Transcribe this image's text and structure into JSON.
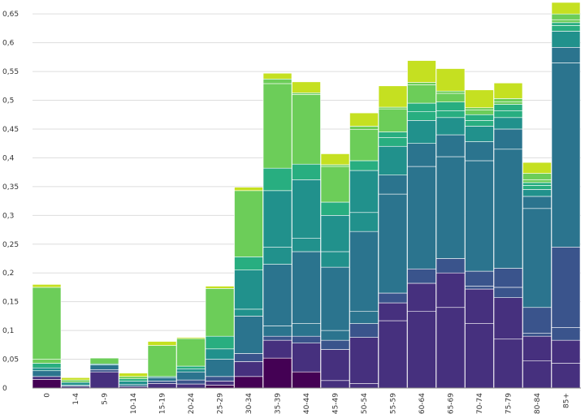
{
  "chart_data": {
    "type": "bar",
    "stacked": true,
    "title": "",
    "xlabel": "",
    "ylabel": "",
    "ylim": [
      0,
      0.67
    ],
    "yticks": [
      0,
      0.05,
      0.1,
      0.15,
      0.2,
      0.25,
      0.3,
      0.35,
      0.4,
      0.45,
      0.5,
      0.55,
      0.6,
      0.65
    ],
    "ytick_labels": [
      "0",
      "0,05",
      "0,1",
      "0,15",
      "0,2",
      "0,25",
      "0,3",
      "0,35",
      "0,4",
      "0,45",
      "0,5",
      "0,55",
      "0,6",
      "0,65"
    ],
    "grid": true,
    "legend": "none",
    "categories": [
      "0",
      "1-4",
      "5-9",
      "10-14",
      "15-19",
      "20-24",
      "25-29",
      "30-34",
      "35-39",
      "40-44",
      "45-49",
      "50-54",
      "55-59",
      "60-64",
      "65-69",
      "70-74",
      "75-79",
      "80-84",
      "85+"
    ],
    "colors": [
      "#440154",
      "#46307e",
      "#3a548c",
      "#2b748e",
      "#21918c",
      "#28ae80",
      "#6ccd59",
      "#c5e021"
    ],
    "segments": [
      [
        [
          0.015,
          0
        ],
        [
          0.02,
          1
        ],
        [
          0.03,
          3
        ],
        [
          0.035,
          4
        ],
        [
          0.043,
          5
        ],
        [
          0.05,
          6
        ],
        [
          0.175,
          6
        ],
        [
          0.18,
          7
        ]
      ],
      [
        [
          0.003,
          1
        ],
        [
          0.005,
          3
        ],
        [
          0.01,
          4
        ],
        [
          0.014,
          6
        ],
        [
          0.018,
          7
        ]
      ],
      [
        [
          0.028,
          1
        ],
        [
          0.032,
          2
        ],
        [
          0.04,
          3
        ],
        [
          0.042,
          4
        ],
        [
          0.052,
          6
        ]
      ],
      [
        [
          0.003,
          1
        ],
        [
          0.006,
          3
        ],
        [
          0.012,
          4
        ],
        [
          0.016,
          5
        ],
        [
          0.02,
          6
        ],
        [
          0.026,
          7
        ]
      ],
      [
        [
          0.008,
          1
        ],
        [
          0.012,
          2
        ],
        [
          0.018,
          3
        ],
        [
          0.02,
          4
        ],
        [
          0.074,
          6
        ],
        [
          0.081,
          7
        ]
      ],
      [
        [
          0.007,
          1
        ],
        [
          0.014,
          2
        ],
        [
          0.028,
          3
        ],
        [
          0.033,
          4
        ],
        [
          0.038,
          5
        ],
        [
          0.086,
          6
        ],
        [
          0.088,
          7
        ]
      ],
      [
        [
          0.005,
          0
        ],
        [
          0.012,
          1
        ],
        [
          0.02,
          2
        ],
        [
          0.05,
          3
        ],
        [
          0.068,
          4
        ],
        [
          0.09,
          5
        ],
        [
          0.173,
          6
        ],
        [
          0.177,
          7
        ]
      ],
      [
        [
          0.02,
          0
        ],
        [
          0.046,
          1
        ],
        [
          0.06,
          2
        ],
        [
          0.125,
          3
        ],
        [
          0.137,
          4
        ],
        [
          0.205,
          4
        ],
        [
          0.228,
          5
        ],
        [
          0.343,
          6
        ],
        [
          0.349,
          7
        ]
      ],
      [
        [
          0.052,
          0
        ],
        [
          0.083,
          1
        ],
        [
          0.09,
          2
        ],
        [
          0.108,
          3
        ],
        [
          0.215,
          3
        ],
        [
          0.245,
          4
        ],
        [
          0.343,
          4
        ],
        [
          0.382,
          5
        ],
        [
          0.529,
          6
        ],
        [
          0.537,
          6
        ],
        [
          0.547,
          7
        ]
      ],
      [
        [
          0.028,
          0
        ],
        [
          0.078,
          1
        ],
        [
          0.09,
          2
        ],
        [
          0.112,
          3
        ],
        [
          0.237,
          3
        ],
        [
          0.26,
          4
        ],
        [
          0.362,
          4
        ],
        [
          0.389,
          5
        ],
        [
          0.51,
          6
        ],
        [
          0.513,
          6
        ],
        [
          0.532,
          7
        ]
      ],
      [
        [
          0.013,
          1
        ],
        [
          0.067,
          1
        ],
        [
          0.083,
          2
        ],
        [
          0.1,
          3
        ],
        [
          0.21,
          3
        ],
        [
          0.237,
          4
        ],
        [
          0.3,
          4
        ],
        [
          0.323,
          5
        ],
        [
          0.385,
          6
        ],
        [
          0.388,
          6
        ],
        [
          0.407,
          7
        ]
      ],
      [
        [
          0.008,
          1
        ],
        [
          0.088,
          1
        ],
        [
          0.112,
          2
        ],
        [
          0.133,
          3
        ],
        [
          0.272,
          3
        ],
        [
          0.305,
          4
        ],
        [
          0.378,
          4
        ],
        [
          0.395,
          5
        ],
        [
          0.449,
          6
        ],
        [
          0.455,
          6
        ],
        [
          0.478,
          7
        ]
      ],
      [
        [
          0.117,
          1
        ],
        [
          0.148,
          1
        ],
        [
          0.165,
          2
        ],
        [
          0.337,
          3
        ],
        [
          0.37,
          3
        ],
        [
          0.42,
          4
        ],
        [
          0.435,
          5
        ],
        [
          0.445,
          5
        ],
        [
          0.485,
          6
        ],
        [
          0.488,
          6
        ],
        [
          0.525,
          7
        ]
      ],
      [
        [
          0.133,
          1
        ],
        [
          0.182,
          1
        ],
        [
          0.207,
          2
        ],
        [
          0.385,
          3
        ],
        [
          0.425,
          3
        ],
        [
          0.465,
          4
        ],
        [
          0.48,
          5
        ],
        [
          0.495,
          5
        ],
        [
          0.527,
          6
        ],
        [
          0.531,
          6
        ],
        [
          0.569,
          7
        ]
      ],
      [
        [
          0.14,
          1
        ],
        [
          0.2,
          1
        ],
        [
          0.225,
          2
        ],
        [
          0.402,
          3
        ],
        [
          0.44,
          3
        ],
        [
          0.47,
          4
        ],
        [
          0.482,
          5
        ],
        [
          0.497,
          5
        ],
        [
          0.512,
          6
        ],
        [
          0.516,
          6
        ],
        [
          0.555,
          7
        ]
      ],
      [
        [
          0.112,
          1
        ],
        [
          0.172,
          1
        ],
        [
          0.177,
          2
        ],
        [
          0.203,
          2
        ],
        [
          0.395,
          3
        ],
        [
          0.428,
          3
        ],
        [
          0.455,
          4
        ],
        [
          0.465,
          5
        ],
        [
          0.475,
          5
        ],
        [
          0.483,
          6
        ],
        [
          0.487,
          6
        ],
        [
          0.518,
          7
        ]
      ],
      [
        [
          0.085,
          1
        ],
        [
          0.157,
          1
        ],
        [
          0.175,
          2
        ],
        [
          0.208,
          2
        ],
        [
          0.415,
          3
        ],
        [
          0.45,
          3
        ],
        [
          0.47,
          4
        ],
        [
          0.482,
          5
        ],
        [
          0.493,
          5
        ],
        [
          0.497,
          6
        ],
        [
          0.503,
          6
        ],
        [
          0.53,
          7
        ]
      ],
      [
        [
          0.047,
          1
        ],
        [
          0.09,
          1
        ],
        [
          0.095,
          2
        ],
        [
          0.14,
          2
        ],
        [
          0.312,
          3
        ],
        [
          0.333,
          3
        ],
        [
          0.345,
          4
        ],
        [
          0.352,
          5
        ],
        [
          0.357,
          5
        ],
        [
          0.362,
          6
        ],
        [
          0.373,
          6
        ],
        [
          0.392,
          7
        ]
      ],
      [
        [
          0.043,
          1
        ],
        [
          0.083,
          1
        ],
        [
          0.105,
          2
        ],
        [
          0.245,
          2
        ],
        [
          0.565,
          3
        ],
        [
          0.592,
          3
        ],
        [
          0.62,
          4
        ],
        [
          0.63,
          5
        ],
        [
          0.635,
          5
        ],
        [
          0.64,
          6
        ],
        [
          0.65,
          6
        ],
        [
          0.67,
          7
        ]
      ]
    ]
  }
}
